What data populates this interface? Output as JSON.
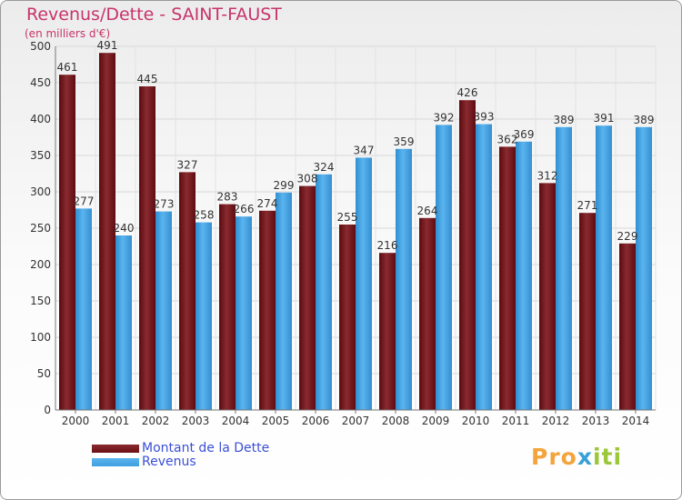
{
  "chart_data": {
    "type": "bar",
    "title": "Revenus/Dette - SAINT-FAUST",
    "subtitle": "(en milliers d'€)",
    "categories": [
      "2000",
      "2001",
      "2002",
      "2003",
      "2004",
      "2005",
      "2006",
      "2007",
      "2008",
      "2009",
      "2010",
      "2011",
      "2012",
      "2013",
      "2014"
    ],
    "series": [
      {
        "name": "Montant de la Dette",
        "color": "#6b0f14",
        "values": [
          461,
          491,
          445,
          327,
          283,
          274,
          308,
          255,
          216,
          264,
          426,
          362,
          312,
          271,
          229
        ]
      },
      {
        "name": "Revenus",
        "color": "#3f9fe0",
        "values": [
          277,
          240,
          273,
          258,
          266,
          299,
          324,
          347,
          359,
          392,
          393,
          369,
          389,
          391,
          389
        ]
      }
    ],
    "ylim": [
      0,
      500
    ],
    "yticks": [
      0,
      50,
      100,
      150,
      200,
      250,
      300,
      350,
      400,
      450,
      500
    ],
    "xlabel": "",
    "ylabel": "",
    "grid": true,
    "legend": "bottom-left"
  },
  "logo": {
    "text_part1": "Pro",
    "text_part2": "x",
    "text_part3": "iti"
  }
}
